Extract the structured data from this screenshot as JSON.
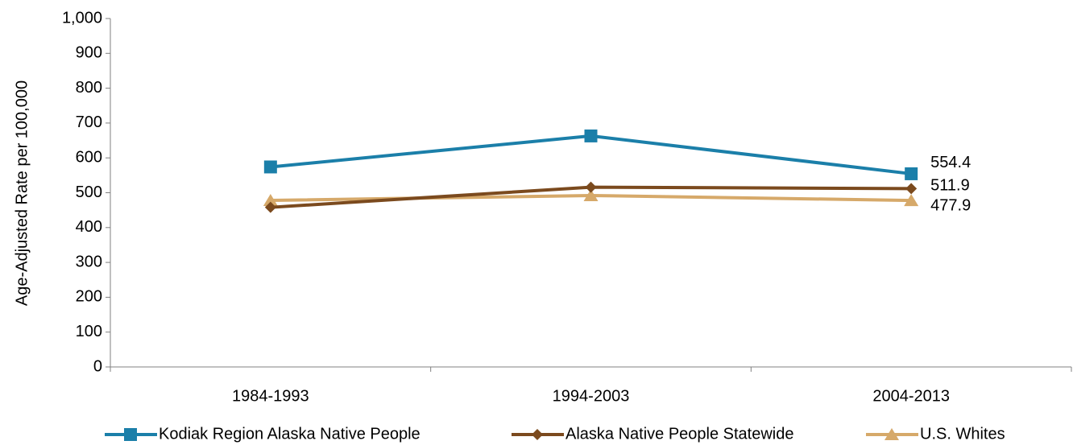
{
  "chart_data": {
    "type": "line",
    "y_axis_label": "Age-Adjusted Rate per 100,000",
    "categories": [
      "1984-1993",
      "1994-2003",
      "2004-2013"
    ],
    "series": [
      {
        "name": "Kodiak Region Alaska Native People",
        "color": "#1b7fa9",
        "marker": "square",
        "values": [
          574,
          663,
          554.4
        ]
      },
      {
        "name": "Alaska Native People Statewide",
        "color": "#7b4a1e",
        "marker": "diamond",
        "values": [
          458,
          516,
          511.9
        ]
      },
      {
        "name": "U.S. Whites",
        "color": "#d6a96a",
        "marker": "triangle",
        "values": [
          478,
          492,
          477.9
        ]
      }
    ],
    "labeled_point": 2,
    "ylim": [
      0,
      1000
    ],
    "yticks": [
      0,
      100,
      200,
      300,
      400,
      500,
      600,
      700,
      800,
      900,
      {
        "value": 1000,
        "label": "1,000"
      }
    ],
    "grid": false,
    "legend": "bottom"
  }
}
